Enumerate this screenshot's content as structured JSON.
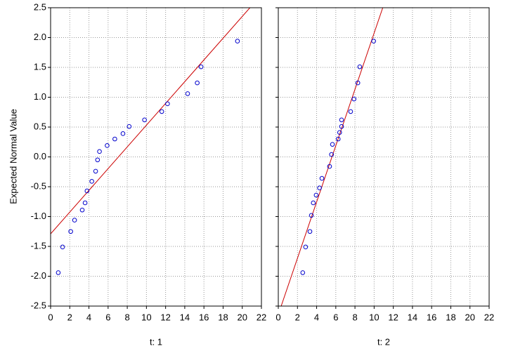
{
  "chart_data": [
    {
      "type": "scatter",
      "ylabel": "Expected Normal Value",
      "xlabel": "t: 1",
      "x": [
        0.8,
        1.25,
        2.1,
        2.5,
        3.3,
        3.6,
        3.8,
        4.3,
        4.7,
        4.9,
        5.1,
        5.9,
        6.7,
        7.55,
        8.2,
        9.8,
        11.6,
        12.2,
        14.3,
        15.3,
        15.7,
        19.5
      ],
      "y": [
        -1.94,
        -1.51,
        -1.25,
        -1.06,
        -0.89,
        -0.77,
        -0.57,
        -0.41,
        -0.24,
        -0.05,
        0.09,
        0.19,
        0.3,
        0.39,
        0.51,
        0.62,
        0.76,
        0.89,
        1.06,
        1.24,
        1.51,
        1.94
      ],
      "color": "#0000cc",
      "line": {
        "color": "#cc0000",
        "x": [
          0,
          20.8
        ],
        "y": [
          -1.29,
          2.5
        ]
      },
      "xlim": [
        0,
        22
      ],
      "xticks": [
        0,
        2,
        4,
        6,
        8,
        10,
        12,
        14,
        16,
        18,
        20,
        22
      ],
      "ylim": [
        -2.5,
        2.5
      ],
      "yticks": [
        -2.5,
        {
          "value": -2,
          "label": "-2.0"
        },
        -1.5,
        {
          "value": -1,
          "label": "-1.0"
        },
        -0.5,
        {
          "value": 0,
          "label": "0.0"
        },
        0.5,
        {
          "value": 1,
          "label": "1.0"
        },
        1.5,
        {
          "value": 2,
          "label": "2.0"
        },
        2.5
      ],
      "ytick_labels": true,
      "grid": true
    },
    {
      "type": "scatter",
      "xlabel": "t: 2",
      "x": [
        2.55,
        2.85,
        3.3,
        3.45,
        3.65,
        3.95,
        4.3,
        4.55,
        5.35,
        5.55,
        5.65,
        6.25,
        6.4,
        6.6,
        6.6,
        7.55,
        7.9,
        8.3,
        8.5,
        9.95
      ],
      "y": [
        -1.94,
        -1.51,
        -1.25,
        -0.98,
        -0.77,
        -0.64,
        -0.52,
        -0.36,
        -0.16,
        0.04,
        0.21,
        0.3,
        0.41,
        0.51,
        0.62,
        0.76,
        0.97,
        1.24,
        1.51,
        1.94
      ],
      "color": "#0000cc",
      "line": {
        "color": "#cc0000",
        "x": [
          0.3,
          10.9
        ],
        "y": [
          -2.5,
          2.5
        ]
      },
      "xlim": [
        0,
        22
      ],
      "xticks": [
        0,
        2,
        4,
        6,
        8,
        10,
        12,
        14,
        16,
        18,
        20,
        22
      ],
      "ylim": [
        -2.5,
        2.5
      ],
      "yticks": [
        -2.5,
        -2,
        -1.5,
        -1,
        -0.5,
        0,
        0.5,
        1,
        1.5,
        2,
        2.5
      ],
      "ytick_labels": false,
      "grid": true
    }
  ]
}
